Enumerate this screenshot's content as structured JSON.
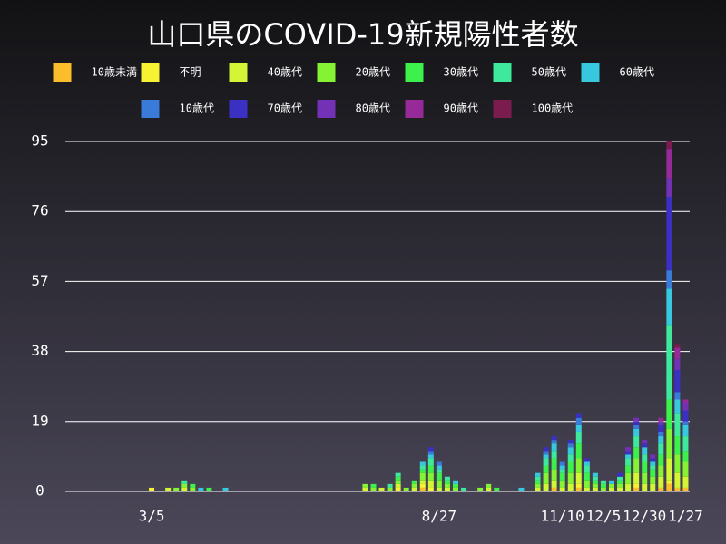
{
  "chart_data": {
    "type": "bar",
    "stacked": true,
    "title": "山口県のCOVID-19新規陽性者数",
    "legend": "top",
    "grid": true,
    "ylim": [
      0,
      95
    ],
    "yticks": [
      0,
      19,
      38,
      57,
      76,
      95
    ],
    "categories": [
      null,
      null,
      null,
      null,
      null,
      null,
      null,
      null,
      null,
      null,
      "3/5",
      null,
      null,
      null,
      null,
      null,
      null,
      null,
      null,
      null,
      null,
      null,
      null,
      null,
      null,
      null,
      null,
      null,
      null,
      null,
      null,
      null,
      null,
      null,
      null,
      null,
      null,
      null,
      null,
      null,
      null,
      null,
      null,
      null,
      null,
      "8/27",
      null,
      null,
      null,
      null,
      null,
      null,
      null,
      null,
      null,
      null,
      null,
      null,
      null,
      null,
      "11/10",
      null,
      null,
      null,
      null,
      "12/5",
      null,
      null,
      null,
      null,
      "12/30",
      null,
      null,
      null,
      null,
      "1/27"
    ],
    "series": [
      {
        "name": "10歳未満",
        "color": "#fbbd2c",
        "values": [
          0,
          0,
          0,
          0,
          0,
          0,
          0,
          0,
          0,
          0,
          0,
          0,
          0,
          0,
          0,
          0,
          0,
          0,
          0,
          0,
          0,
          0,
          0,
          0,
          0,
          0,
          0,
          0,
          0,
          0,
          0,
          0,
          0,
          0,
          0,
          0,
          0,
          0,
          0,
          0,
          0,
          0,
          0,
          1,
          0,
          0,
          0,
          0,
          0,
          0,
          0,
          0,
          0,
          0,
          0,
          0,
          0,
          0,
          0,
          1,
          0,
          0,
          1,
          0,
          0,
          0,
          0,
          0,
          0,
          1,
          0,
          0,
          1,
          2,
          1,
          1
        ]
      },
      {
        "name": "不明",
        "color": "#f7f232",
        "values": [
          0,
          0,
          0,
          0,
          0,
          0,
          0,
          0,
          0,
          0,
          1,
          0,
          0,
          0,
          0,
          0,
          0,
          0,
          0,
          0,
          0,
          0,
          0,
          0,
          0,
          0,
          0,
          0,
          0,
          0,
          0,
          0,
          0,
          0,
          0,
          0,
          0,
          0,
          0,
          0,
          1,
          0,
          0,
          1,
          1,
          0,
          0,
          0,
          0,
          0,
          0,
          0,
          0,
          0,
          0,
          0,
          0,
          0,
          0,
          0,
          0,
          0,
          1,
          0,
          0,
          0,
          0,
          0,
          0,
          1,
          0,
          0,
          0,
          1,
          0,
          0
        ]
      },
      {
        "name": "40歳代",
        "color": "#d4f436",
        "values": [
          0,
          0,
          0,
          0,
          0,
          0,
          0,
          0,
          0,
          0,
          0,
          0,
          1,
          0,
          1,
          0,
          0,
          0,
          0,
          0,
          0,
          0,
          0,
          0,
          0,
          0,
          0,
          0,
          0,
          0,
          0,
          0,
          0,
          0,
          0,
          0,
          1,
          0,
          1,
          0,
          1,
          0,
          1,
          1,
          2,
          1,
          1,
          0,
          0,
          0,
          0,
          1,
          0,
          0,
          0,
          0,
          0,
          1,
          2,
          2,
          1,
          2,
          3,
          1,
          1,
          0,
          1,
          1,
          2,
          3,
          2,
          2,
          3,
          6,
          4,
          3
        ]
      },
      {
        "name": "20歳代",
        "color": "#86f234",
        "values": [
          0,
          0,
          0,
          0,
          0,
          0,
          0,
          0,
          0,
          0,
          0,
          0,
          0,
          1,
          1,
          1,
          0,
          0,
          0,
          0,
          0,
          0,
          0,
          0,
          0,
          0,
          0,
          0,
          0,
          0,
          0,
          0,
          0,
          0,
          0,
          0,
          1,
          1,
          0,
          1,
          1,
          1,
          1,
          2,
          2,
          2,
          1,
          1,
          0,
          0,
          1,
          1,
          0,
          0,
          0,
          0,
          0,
          1,
          3,
          3,
          2,
          3,
          4,
          2,
          1,
          1,
          1,
          1,
          3,
          4,
          3,
          2,
          3,
          8,
          5,
          4
        ]
      },
      {
        "name": "30歳代",
        "color": "#3ef04c",
        "values": [
          0,
          0,
          0,
          0,
          0,
          0,
          0,
          0,
          0,
          0,
          0,
          0,
          0,
          0,
          0,
          1,
          0,
          1,
          0,
          0,
          0,
          0,
          0,
          0,
          0,
          0,
          0,
          0,
          0,
          0,
          0,
          0,
          0,
          0,
          0,
          0,
          0,
          1,
          0,
          0,
          1,
          0,
          1,
          1,
          2,
          2,
          1,
          1,
          0,
          0,
          0,
          0,
          1,
          0,
          0,
          0,
          0,
          1,
          2,
          3,
          2,
          3,
          4,
          2,
          1,
          1,
          0,
          1,
          2,
          3,
          3,
          2,
          3,
          8,
          5,
          3
        ]
      },
      {
        "name": "50歳代",
        "color": "#3ee89c",
        "values": [
          0,
          0,
          0,
          0,
          0,
          0,
          0,
          0,
          0,
          0,
          0,
          0,
          0,
          0,
          1,
          0,
          0,
          0,
          0,
          0,
          0,
          0,
          0,
          0,
          0,
          0,
          0,
          0,
          0,
          0,
          0,
          0,
          0,
          0,
          0,
          0,
          0,
          0,
          0,
          1,
          1,
          0,
          0,
          1,
          2,
          1,
          1,
          0,
          1,
          0,
          0,
          0,
          0,
          0,
          0,
          0,
          0,
          1,
          2,
          2,
          1,
          2,
          3,
          2,
          1,
          1,
          0,
          1,
          2,
          3,
          2,
          1,
          3,
          20,
          6,
          4
        ]
      },
      {
        "name": "60歳代",
        "color": "#38c8de",
        "values": [
          0,
          0,
          0,
          0,
          0,
          0,
          0,
          0,
          0,
          0,
          0,
          0,
          0,
          0,
          0,
          0,
          1,
          0,
          0,
          1,
          0,
          0,
          0,
          0,
          0,
          0,
          0,
          0,
          0,
          0,
          0,
          0,
          0,
          0,
          0,
          0,
          0,
          0,
          0,
          0,
          0,
          0,
          0,
          1,
          1,
          1,
          0,
          1,
          0,
          0,
          0,
          0,
          0,
          0,
          0,
          1,
          0,
          1,
          1,
          2,
          1,
          2,
          2,
          1,
          1,
          0,
          1,
          0,
          1,
          2,
          2,
          1,
          2,
          10,
          4,
          3
        ]
      },
      {
        "name": "10歳代",
        "color": "#3a7ad8",
        "values": [
          0,
          0,
          0,
          0,
          0,
          0,
          0,
          0,
          0,
          0,
          0,
          0,
          0,
          0,
          0,
          0,
          0,
          0,
          0,
          0,
          0,
          0,
          0,
          0,
          0,
          0,
          0,
          0,
          0,
          0,
          0,
          0,
          0,
          0,
          0,
          0,
          0,
          0,
          0,
          0,
          0,
          0,
          0,
          0,
          1,
          1,
          0,
          0,
          0,
          0,
          0,
          0,
          0,
          0,
          0,
          0,
          0,
          0,
          1,
          1,
          1,
          1,
          2,
          0,
          0,
          0,
          0,
          0,
          0,
          1,
          0,
          0,
          1,
          5,
          2,
          1
        ]
      },
      {
        "name": "70歳代",
        "color": "#3a30c4",
        "values": [
          0,
          0,
          0,
          0,
          0,
          0,
          0,
          0,
          0,
          0,
          0,
          0,
          0,
          0,
          0,
          0,
          0,
          0,
          0,
          0,
          0,
          0,
          0,
          0,
          0,
          0,
          0,
          0,
          0,
          0,
          0,
          0,
          0,
          0,
          0,
          0,
          0,
          0,
          0,
          0,
          0,
          0,
          0,
          0,
          1,
          0,
          0,
          0,
          0,
          0,
          0,
          0,
          0,
          0,
          0,
          0,
          0,
          0,
          1,
          1,
          0,
          1,
          1,
          1,
          0,
          0,
          0,
          1,
          1,
          1,
          1,
          1,
          2,
          20,
          6,
          3
        ]
      },
      {
        "name": "80歳代",
        "color": "#7332b6",
        "values": [
          0,
          0,
          0,
          0,
          0,
          0,
          0,
          0,
          0,
          0,
          0,
          0,
          0,
          0,
          0,
          0,
          0,
          0,
          0,
          0,
          0,
          0,
          0,
          0,
          0,
          0,
          0,
          0,
          0,
          0,
          0,
          0,
          0,
          0,
          0,
          0,
          0,
          0,
          0,
          0,
          0,
          0,
          0,
          0,
          0,
          0,
          0,
          0,
          0,
          0,
          0,
          0,
          0,
          0,
          0,
          0,
          0,
          0,
          0,
          0,
          0,
          0,
          0,
          0,
          0,
          0,
          0,
          0,
          1,
          1,
          1,
          1,
          1,
          5,
          3,
          2
        ]
      },
      {
        "name": "90歳代",
        "color": "#962a98",
        "values": [
          0,
          0,
          0,
          0,
          0,
          0,
          0,
          0,
          0,
          0,
          0,
          0,
          0,
          0,
          0,
          0,
          0,
          0,
          0,
          0,
          0,
          0,
          0,
          0,
          0,
          0,
          0,
          0,
          0,
          0,
          0,
          0,
          0,
          0,
          0,
          0,
          0,
          0,
          0,
          0,
          0,
          0,
          0,
          0,
          0,
          0,
          0,
          0,
          0,
          0,
          0,
          0,
          0,
          0,
          0,
          0,
          0,
          0,
          0,
          0,
          0,
          0,
          0,
          0,
          0,
          0,
          0,
          0,
          0,
          0,
          0,
          0,
          1,
          8,
          3,
          1
        ]
      },
      {
        "name": "100歳代",
        "color": "#7a1c4e",
        "values": [
          0,
          0,
          0,
          0,
          0,
          0,
          0,
          0,
          0,
          0,
          0,
          0,
          0,
          0,
          0,
          0,
          0,
          0,
          0,
          0,
          0,
          0,
          0,
          0,
          0,
          0,
          0,
          0,
          0,
          0,
          0,
          0,
          0,
          0,
          0,
          0,
          0,
          0,
          0,
          0,
          0,
          0,
          0,
          0,
          0,
          0,
          0,
          0,
          0,
          0,
          0,
          0,
          0,
          0,
          0,
          0,
          0,
          0,
          0,
          0,
          0,
          0,
          0,
          0,
          0,
          0,
          0,
          0,
          0,
          0,
          0,
          0,
          0,
          2,
          1,
          0
        ]
      }
    ]
  }
}
